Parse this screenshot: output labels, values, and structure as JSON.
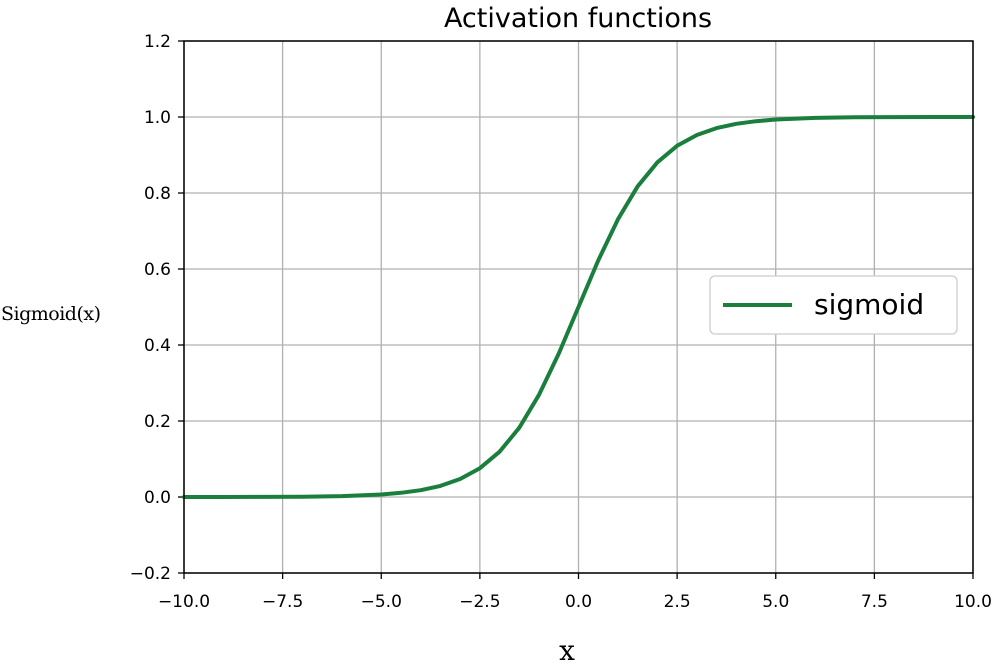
{
  "chart_data": {
    "type": "line",
    "title": "Activation functions",
    "xlabel": "x",
    "ylabel": "Sigmoid(x)",
    "xlim": [
      -10.0,
      10.0
    ],
    "ylim": [
      -0.2,
      1.2
    ],
    "xticks": [
      -10.0,
      -7.5,
      -5.0,
      -2.5,
      0.0,
      2.5,
      5.0,
      7.5,
      10.0
    ],
    "xtick_labels": [
      "−10.0",
      "−7.5",
      "−5.0",
      "−2.5",
      "0.0",
      "2.5",
      "5.0",
      "7.5",
      "10.0"
    ],
    "yticks": [
      -0.2,
      0.0,
      0.2,
      0.4,
      0.6,
      0.8,
      1.0,
      1.2
    ],
    "ytick_labels": [
      "−0.2",
      "0.0",
      "0.2",
      "0.4",
      "0.6",
      "0.8",
      "1.0",
      "1.2"
    ],
    "grid": true,
    "legend_position": "center-right",
    "series": [
      {
        "name": "sigmoid",
        "color": "#1a7f3c",
        "x": [
          -10.0,
          -9.0,
          -8.0,
          -7.0,
          -6.0,
          -5.0,
          -4.5,
          -4.0,
          -3.5,
          -3.0,
          -2.5,
          -2.0,
          -1.5,
          -1.0,
          -0.5,
          0.0,
          0.5,
          1.0,
          1.5,
          2.0,
          2.5,
          3.0,
          3.5,
          4.0,
          4.5,
          5.0,
          6.0,
          7.0,
          8.0,
          9.0,
          10.0
        ],
        "y": [
          5e-05,
          0.00012,
          0.00034,
          0.00091,
          0.00247,
          0.00669,
          0.01099,
          0.01799,
          0.02931,
          0.04743,
          0.07586,
          0.1192,
          0.18243,
          0.26894,
          0.37754,
          0.5,
          0.62246,
          0.73106,
          0.81757,
          0.8808,
          0.92414,
          0.95257,
          0.97069,
          0.98201,
          0.98901,
          0.99331,
          0.99753,
          0.99909,
          0.99966,
          0.99988,
          0.99995
        ]
      }
    ]
  }
}
